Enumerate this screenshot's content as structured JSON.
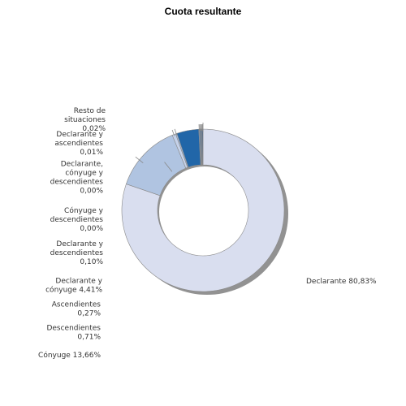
{
  "chart_data": {
    "type": "pie",
    "variant": "donut",
    "title": "Cuota resultante",
    "slices": [
      {
        "label": "Declarante 80,83%",
        "value": 80.83,
        "color": "#d9deef"
      },
      {
        "label": "Cónyuge 13,66%",
        "value": 13.66,
        "color": "#b0c4e1"
      },
      {
        "label": "Descendientes 0,71%",
        "value": 0.71,
        "color": "#c5d2ea"
      },
      {
        "label": "Ascendientes 0,27%",
        "value": 0.27,
        "color": "#a8bede"
      },
      {
        "label": "Declarante y cónyuge 4,41%",
        "value": 4.41,
        "color": "#2166a8"
      },
      {
        "label": "Declarante y descendientes 0,10%",
        "value": 0.1,
        "color": "#6f9bd0"
      },
      {
        "label": "Cónyuge y descendientes 0,00%",
        "value": 0.0,
        "color": "#4b7fbf"
      },
      {
        "label": "Declarante, cónyuge y descendientes 0,00%",
        "value": 0.0,
        "color": "#1f5a99"
      },
      {
        "label": "Declarante y ascendientes 0,01%",
        "value": 0.01,
        "color": "#3d6fb0"
      },
      {
        "label": "Resto de situaciones 0,02%",
        "value": 0.02,
        "color": "#174b85"
      }
    ],
    "shadow_color": "#7f7f7f",
    "leader_color": "#888888"
  }
}
